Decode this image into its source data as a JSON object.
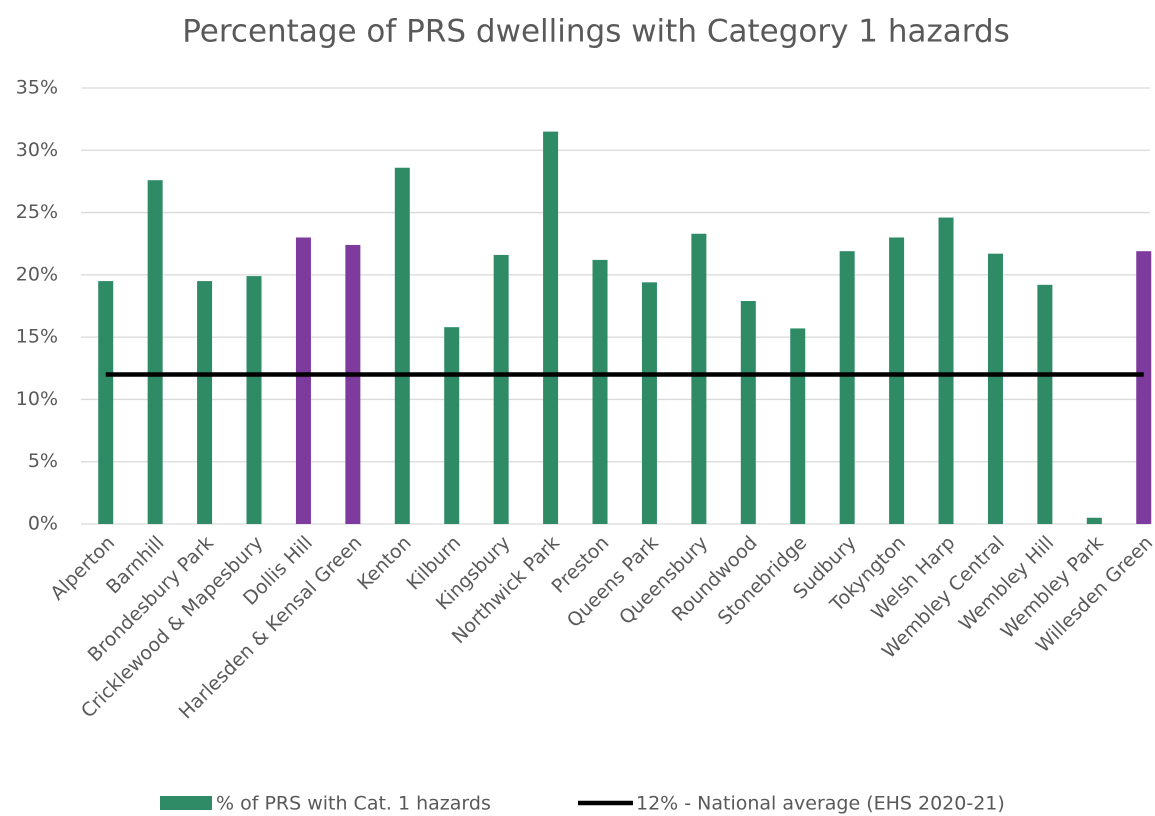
{
  "chart_data": {
    "type": "bar",
    "title": "Percentage of PRS dwellings with Category 1 hazards",
    "categories": [
      "Alperton",
      "Barnhill",
      "Brondesbury Park",
      "Cricklewood & Mapesbury",
      "Dollis Hill",
      "Harlesden & Kensal Green",
      "Kenton",
      "Kilburn",
      "Kingsbury",
      "Northwick Park",
      "Preston",
      "Queens Park",
      "Queensbury",
      "Roundwood",
      "Stonebridge",
      "Sudbury",
      "Tokyngton",
      "Welsh Harp",
      "Wembley Central",
      "Wembley Hill",
      "Wembley Park",
      "Willesden Green"
    ],
    "series": [
      {
        "name": "% of PRS with Cat. 1 hazards",
        "type": "bar",
        "color": "#2e8b66",
        "colors": [
          "#2e8b66",
          "#2e8b66",
          "#2e8b66",
          "#2e8b66",
          "#7e3b9e",
          "#7e3b9e",
          "#2e8b66",
          "#2e8b66",
          "#2e8b66",
          "#2e8b66",
          "#2e8b66",
          "#2e8b66",
          "#2e8b66",
          "#2e8b66",
          "#2e8b66",
          "#2e8b66",
          "#2e8b66",
          "#2e8b66",
          "#2e8b66",
          "#2e8b66",
          "#2e8b66",
          "#7e3b9e"
        ],
        "values": [
          19.5,
          27.6,
          19.5,
          19.9,
          23.0,
          22.4,
          28.6,
          15.8,
          21.6,
          31.5,
          21.2,
          19.4,
          23.3,
          17.9,
          15.7,
          21.9,
          23.0,
          24.6,
          21.7,
          19.2,
          0.5,
          21.9
        ]
      },
      {
        "name": "12% - National average (EHS 2020-21)",
        "type": "line",
        "color": "#000000",
        "values": [
          12,
          12,
          12,
          12,
          12,
          12,
          12,
          12,
          12,
          12,
          12,
          12,
          12,
          12,
          12,
          12,
          12,
          12,
          12,
          12,
          12,
          12
        ]
      }
    ],
    "ylim": [
      0,
      35
    ],
    "yticks": [
      {
        "value": 0,
        "label": "0%"
      },
      {
        "value": 5,
        "label": "5%"
      },
      {
        "value": 10,
        "label": "10%"
      },
      {
        "value": 15,
        "label": "15%"
      },
      {
        "value": 20,
        "label": "20%"
      },
      {
        "value": 25,
        "label": "25%"
      },
      {
        "value": 30,
        "label": "30%"
      },
      {
        "value": 35,
        "label": "35%"
      }
    ],
    "grid": true,
    "legend": "bottom"
  }
}
